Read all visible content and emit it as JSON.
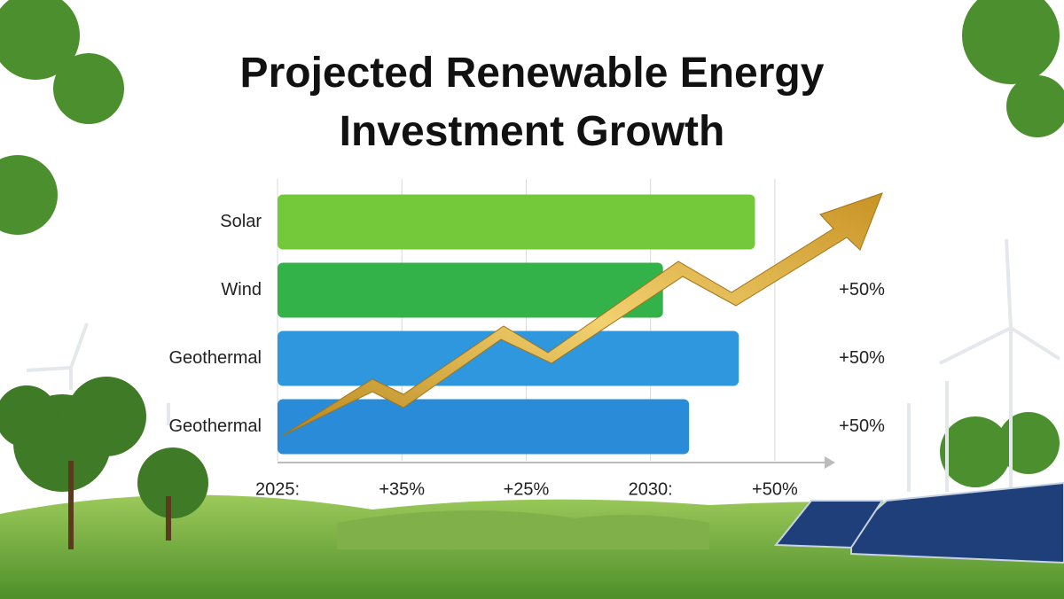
{
  "chart_data": {
    "type": "hbar",
    "title": "Projected Renewable Energy Investment Growth",
    "categories": [
      "Solar",
      "Wind",
      "Geothermal",
      "Geothermal"
    ],
    "values": [
      3.84,
      3.1,
      3.71,
      3.31
    ],
    "colors": [
      "#74c93a",
      "#33b24a",
      "#2e97dd",
      "#2a8bd8"
    ],
    "side_labels": [
      null,
      "+50%",
      "+50%",
      "+50%"
    ],
    "xlim": [
      0,
      4.4
    ],
    "xticks": [
      {
        "value": 0,
        "label": "2025:"
      },
      {
        "value": 1,
        "label": "+35%"
      },
      {
        "value": 2,
        "label": "+25%"
      },
      {
        "value": 3,
        "label": "2030:"
      },
      {
        "value": 4,
        "label": "+50%"
      }
    ],
    "grid": true
  }
}
